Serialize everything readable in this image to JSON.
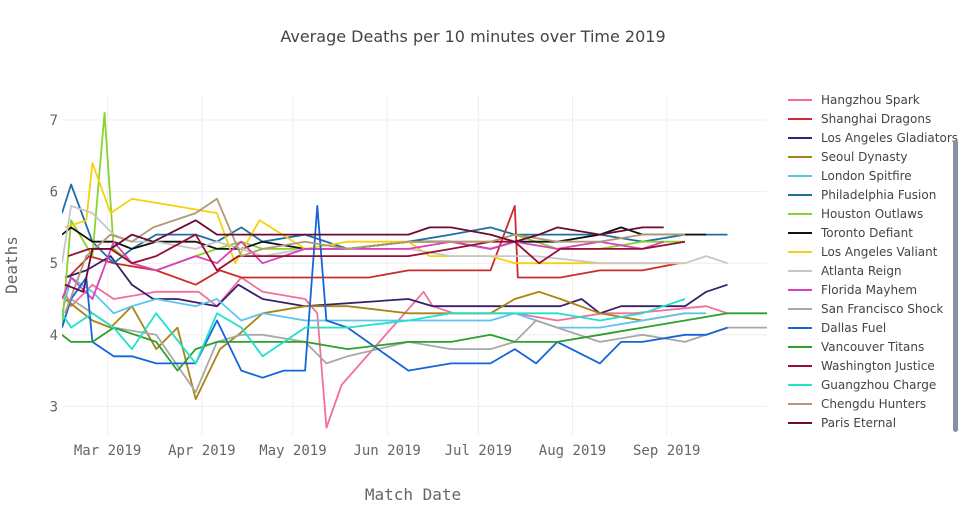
{
  "chart_data": {
    "type": "line",
    "title": "Average Deaths per 10 minutes over Time 2019",
    "xlabel": "Match Date",
    "ylabel": "Deaths",
    "x_start": "2019-02-14",
    "x_end": "2019-10-04",
    "ylim": [
      2.6,
      7.35
    ],
    "yticks": [
      3,
      4,
      5,
      6,
      7
    ],
    "xticks": [
      {
        "label": "Mar 2019",
        "date": "2019-03-01"
      },
      {
        "label": "Apr 2019",
        "date": "2019-04-01"
      },
      {
        "label": "May 2019",
        "date": "2019-05-01"
      },
      {
        "label": "Jun 2019",
        "date": "2019-06-01"
      },
      {
        "label": "Jul 2019",
        "date": "2019-07-01"
      },
      {
        "label": "Aug 2019",
        "date": "2019-08-01"
      },
      {
        "label": "Sep 2019",
        "date": "2019-09-01"
      }
    ],
    "series": [
      {
        "name": "Hangzhou Spark",
        "color": "#f0709a",
        "x": [
          "2019-02-15",
          "2019-02-17",
          "2019-02-24",
          "2019-03-03",
          "2019-03-17",
          "2019-03-31",
          "2019-04-06",
          "2019-04-14",
          "2019-04-21",
          "2019-05-05",
          "2019-05-09",
          "2019-05-12",
          "2019-05-17",
          "2019-06-13",
          "2019-06-16",
          "2019-06-23",
          "2019-07-05",
          "2019-07-13",
          "2019-07-27",
          "2019-08-11",
          "2019-08-21",
          "2019-09-14",
          "2019-09-21"
        ],
        "y": [
          4.6,
          4.4,
          4.7,
          4.5,
          4.6,
          4.6,
          4.4,
          4.8,
          4.6,
          4.5,
          4.3,
          2.7,
          3.3,
          4.6,
          4.4,
          4.3,
          4.3,
          4.3,
          4.2,
          4.3,
          4.3,
          4.4,
          4.3
        ]
      },
      {
        "name": "Shanghai Dragons",
        "color": "#cc2b2b",
        "x": [
          "2019-02-16",
          "2019-02-23",
          "2019-03-03",
          "2019-03-17",
          "2019-03-30",
          "2019-04-07",
          "2019-04-14",
          "2019-04-21",
          "2019-05-05",
          "2019-05-26",
          "2019-06-08",
          "2019-06-22",
          "2019-07-05",
          "2019-07-13",
          "2019-07-14",
          "2019-07-21",
          "2019-07-28",
          "2019-08-10",
          "2019-08-24",
          "2019-09-05"
        ],
        "y": [
          4.8,
          5.1,
          5.0,
          4.9,
          4.7,
          4.9,
          4.8,
          4.8,
          4.8,
          4.8,
          4.9,
          4.9,
          4.9,
          5.8,
          4.8,
          4.8,
          4.8,
          4.9,
          4.9,
          5.0
        ]
      },
      {
        "name": "Los Angeles Gladiators",
        "color": "#3a1f6b",
        "x": [
          "2019-02-15",
          "2019-02-22",
          "2019-03-02",
          "2019-03-09",
          "2019-03-16",
          "2019-03-24",
          "2019-04-06",
          "2019-04-13",
          "2019-04-21",
          "2019-05-05",
          "2019-06-08",
          "2019-06-16",
          "2019-06-23",
          "2019-07-05",
          "2019-07-13",
          "2019-07-21",
          "2019-07-28",
          "2019-08-04",
          "2019-08-10",
          "2019-08-17",
          "2019-08-24",
          "2019-09-07",
          "2019-09-14",
          "2019-09-21"
        ],
        "y": [
          4.8,
          4.9,
          5.1,
          4.7,
          4.5,
          4.5,
          4.4,
          4.7,
          4.5,
          4.4,
          4.5,
          4.4,
          4.4,
          4.4,
          4.4,
          4.4,
          4.4,
          4.5,
          4.3,
          4.4,
          4.4,
          4.4,
          4.6,
          4.7
        ]
      },
      {
        "name": "Seoul Dynasty",
        "color": "#a88410",
        "x": [
          "2019-02-15",
          "2019-02-24",
          "2019-03-02",
          "2019-03-09",
          "2019-03-17",
          "2019-03-24",
          "2019-03-30",
          "2019-04-07",
          "2019-04-13",
          "2019-04-21",
          "2019-05-05",
          "2019-05-19",
          "2019-06-08",
          "2019-06-22",
          "2019-07-05",
          "2019-07-13",
          "2019-07-21",
          "2019-07-28",
          "2019-08-10",
          "2019-08-24",
          "2019-09-07"
        ],
        "y": [
          4.5,
          4.2,
          4.1,
          4.4,
          3.8,
          4.1,
          3.1,
          3.8,
          4.0,
          4.3,
          4.4,
          4.4,
          4.3,
          4.3,
          4.3,
          4.5,
          4.6,
          4.5,
          4.3,
          4.2,
          4.3
        ]
      },
      {
        "name": "London Spitfire",
        "color": "#5ec4ee",
        "x": [
          "2019-02-14",
          "2019-02-17",
          "2019-02-24",
          "2019-03-03",
          "2019-03-09",
          "2019-03-17",
          "2019-03-30",
          "2019-04-06",
          "2019-04-14",
          "2019-04-21",
          "2019-05-05",
          "2019-05-19",
          "2019-06-08",
          "2019-06-22",
          "2019-07-05",
          "2019-07-13",
          "2019-07-20",
          "2019-07-27",
          "2019-08-10",
          "2019-08-24",
          "2019-09-07",
          "2019-09-14"
        ],
        "y": [
          4.3,
          4.8,
          4.6,
          4.3,
          4.4,
          4.5,
          4.4,
          4.5,
          4.2,
          4.3,
          4.2,
          4.2,
          4.2,
          4.2,
          4.2,
          4.3,
          4.2,
          4.1,
          4.1,
          4.2,
          4.3,
          4.3
        ]
      },
      {
        "name": "Philadelphia Fusion",
        "color": "#1f6fa5",
        "x": [
          "2019-02-14",
          "2019-02-17",
          "2019-02-24",
          "2019-03-03",
          "2019-03-09",
          "2019-03-17",
          "2019-03-30",
          "2019-04-06",
          "2019-04-14",
          "2019-04-21",
          "2019-05-05",
          "2019-05-19",
          "2019-06-08",
          "2019-06-22",
          "2019-07-05",
          "2019-07-13",
          "2019-07-27",
          "2019-08-10",
          "2019-08-24",
          "2019-09-07",
          "2019-09-14",
          "2019-09-21"
        ],
        "y": [
          5.7,
          6.1,
          5.3,
          5.0,
          5.2,
          5.4,
          5.4,
          5.3,
          5.5,
          5.3,
          5.4,
          5.2,
          5.3,
          5.4,
          5.5,
          5.4,
          5.4,
          5.4,
          5.3,
          5.4,
          5.4,
          5.4
        ]
      },
      {
        "name": "Houston Outlaws",
        "color": "#8ad42a",
        "x": [
          "2019-02-14",
          "2019-02-17",
          "2019-02-24",
          "2019-02-28",
          "2019-03-03",
          "2019-03-09",
          "2019-03-17",
          "2019-03-30",
          "2019-04-06",
          "2019-04-14",
          "2019-04-21",
          "2019-05-05",
          "2019-05-19",
          "2019-06-08",
          "2019-06-22",
          "2019-07-05",
          "2019-07-13",
          "2019-07-27",
          "2019-08-10",
          "2019-08-24",
          "2019-09-07"
        ],
        "y": [
          4.1,
          5.6,
          5.1,
          7.1,
          5.2,
          5.0,
          4.9,
          5.1,
          5.2,
          5.3,
          5.2,
          5.2,
          5.2,
          5.3,
          5.3,
          5.3,
          5.4,
          5.2,
          5.2,
          5.3,
          5.3
        ]
      },
      {
        "name": "Toronto Defiant",
        "color": "#111111",
        "x": [
          "2019-02-14",
          "2019-02-17",
          "2019-02-24",
          "2019-03-03",
          "2019-03-09",
          "2019-03-17",
          "2019-03-30",
          "2019-04-06",
          "2019-04-14",
          "2019-04-21",
          "2019-05-05",
          "2019-05-19",
          "2019-06-08",
          "2019-06-22",
          "2019-07-05",
          "2019-07-13",
          "2019-07-27",
          "2019-08-10",
          "2019-08-17",
          "2019-08-24",
          "2019-09-07",
          "2019-09-14"
        ],
        "y": [
          5.4,
          5.5,
          5.3,
          5.3,
          5.2,
          5.3,
          5.3,
          5.2,
          5.2,
          5.3,
          5.2,
          5.2,
          5.3,
          5.3,
          5.2,
          5.3,
          5.3,
          5.4,
          5.5,
          5.4,
          5.4,
          5.4
        ]
      },
      {
        "name": "Los Angeles Valiant",
        "color": "#f5d10f",
        "x": [
          "2019-02-15",
          "2019-02-22",
          "2019-02-24",
          "2019-03-02",
          "2019-03-09",
          "2019-03-23",
          "2019-04-06",
          "2019-04-12",
          "2019-04-20",
          "2019-05-05",
          "2019-05-19",
          "2019-06-08",
          "2019-06-15",
          "2019-06-22",
          "2019-07-05",
          "2019-07-13",
          "2019-07-27",
          "2019-08-10",
          "2019-08-24",
          "2019-09-07"
        ],
        "y": [
          5.5,
          5.6,
          6.4,
          5.7,
          5.9,
          5.8,
          5.7,
          5.0,
          5.6,
          5.2,
          5.3,
          5.3,
          5.1,
          5.1,
          5.1,
          5.0,
          5.0,
          5.0,
          5.0,
          5.0
        ]
      },
      {
        "name": "Atlanta Reign",
        "color": "#c7c7c7",
        "x": [
          "2019-02-14",
          "2019-02-17",
          "2019-02-24",
          "2019-03-03",
          "2019-03-09",
          "2019-03-17",
          "2019-03-30",
          "2019-04-06",
          "2019-04-14",
          "2019-04-21",
          "2019-05-05",
          "2019-05-19",
          "2019-06-08",
          "2019-06-22",
          "2019-07-05",
          "2019-07-20",
          "2019-08-10",
          "2019-08-24",
          "2019-09-07",
          "2019-09-14",
          "2019-09-21"
        ],
        "y": [
          5.0,
          5.8,
          5.7,
          5.4,
          5.3,
          5.3,
          5.2,
          5.3,
          5.2,
          5.1,
          5.2,
          5.2,
          5.2,
          5.1,
          5.1,
          5.1,
          5.0,
          5.0,
          5.0,
          5.1,
          5.0
        ]
      },
      {
        "name": "Florida Mayhem",
        "color": "#dc3fbd",
        "x": [
          "2019-02-14",
          "2019-02-17",
          "2019-02-24",
          "2019-03-03",
          "2019-03-09",
          "2019-03-17",
          "2019-03-30",
          "2019-04-06",
          "2019-04-14",
          "2019-04-21",
          "2019-05-05",
          "2019-05-19",
          "2019-06-08",
          "2019-06-22",
          "2019-07-05",
          "2019-07-13",
          "2019-07-27",
          "2019-08-10",
          "2019-08-24",
          "2019-08-31"
        ],
        "y": [
          4.5,
          4.8,
          4.5,
          5.3,
          5.0,
          4.9,
          5.1,
          5.0,
          5.3,
          5.0,
          5.2,
          5.2,
          5.2,
          5.3,
          5.2,
          5.3,
          5.2,
          5.3,
          5.2,
          5.3
        ]
      },
      {
        "name": "San Francisco Shock",
        "color": "#a8a8a8",
        "x": [
          "2019-02-14",
          "2019-02-17",
          "2019-02-24",
          "2019-03-03",
          "2019-03-17",
          "2019-03-30",
          "2019-04-06",
          "2019-04-14",
          "2019-04-21",
          "2019-05-05",
          "2019-05-12",
          "2019-05-19",
          "2019-06-08",
          "2019-06-22",
          "2019-07-05",
          "2019-07-13",
          "2019-07-20",
          "2019-08-10",
          "2019-08-24",
          "2019-09-07",
          "2019-09-21",
          "2019-10-04"
        ],
        "y": [
          4.1,
          4.5,
          4.3,
          4.1,
          4.0,
          3.2,
          3.9,
          4.0,
          4.0,
          3.9,
          3.6,
          3.7,
          3.9,
          3.8,
          3.8,
          3.9,
          4.2,
          3.9,
          4.0,
          3.9,
          4.1,
          4.1
        ]
      },
      {
        "name": "Dallas Fuel",
        "color": "#1565d8",
        "x": [
          "2019-02-14",
          "2019-02-17",
          "2019-02-22",
          "2019-02-24",
          "2019-03-03",
          "2019-03-09",
          "2019-03-17",
          "2019-03-30",
          "2019-04-06",
          "2019-04-14",
          "2019-04-21",
          "2019-04-28",
          "2019-05-05",
          "2019-05-09",
          "2019-05-12",
          "2019-05-19",
          "2019-06-08",
          "2019-06-22",
          "2019-07-05",
          "2019-07-13",
          "2019-07-20",
          "2019-07-27",
          "2019-08-10",
          "2019-08-17",
          "2019-08-24",
          "2019-09-07",
          "2019-09-14",
          "2019-09-21"
        ],
        "y": [
          4.1,
          4.5,
          4.8,
          3.9,
          3.7,
          3.7,
          3.6,
          3.6,
          4.2,
          3.5,
          3.4,
          3.5,
          3.5,
          5.8,
          4.2,
          4.1,
          3.5,
          3.6,
          3.6,
          3.8,
          3.6,
          3.9,
          3.6,
          3.9,
          3.9,
          4.0,
          4.0,
          4.1
        ]
      },
      {
        "name": "Vancouver Titans",
        "color": "#2ba02b",
        "x": [
          "2019-02-14",
          "2019-02-17",
          "2019-02-24",
          "2019-03-03",
          "2019-03-17",
          "2019-03-24",
          "2019-03-30",
          "2019-04-06",
          "2019-04-14",
          "2019-04-21",
          "2019-05-05",
          "2019-05-19",
          "2019-06-08",
          "2019-06-22",
          "2019-07-05",
          "2019-07-13",
          "2019-07-27",
          "2019-08-10",
          "2019-08-24",
          "2019-09-07",
          "2019-09-21",
          "2019-10-04"
        ],
        "y": [
          4.0,
          3.9,
          3.9,
          4.1,
          3.9,
          3.5,
          3.8,
          3.9,
          3.9,
          3.9,
          3.9,
          3.8,
          3.9,
          3.9,
          4.0,
          3.9,
          3.9,
          4.0,
          4.1,
          4.2,
          4.3,
          4.3
        ]
      },
      {
        "name": "Washington Justice",
        "color": "#990f33",
        "x": [
          "2019-02-16",
          "2019-02-23",
          "2019-03-02",
          "2019-03-09",
          "2019-03-17",
          "2019-03-30",
          "2019-04-06",
          "2019-04-13",
          "2019-04-20",
          "2019-05-04",
          "2019-05-18",
          "2019-06-08",
          "2019-06-22",
          "2019-07-05",
          "2019-07-13",
          "2019-07-21",
          "2019-07-28",
          "2019-08-10",
          "2019-08-24",
          "2019-09-07"
        ],
        "y": [
          5.1,
          5.2,
          5.2,
          5.0,
          5.1,
          5.4,
          4.9,
          5.1,
          5.1,
          5.1,
          5.1,
          5.1,
          5.2,
          5.3,
          5.3,
          5.0,
          5.2,
          5.2,
          5.2,
          5.3
        ]
      },
      {
        "name": "Guangzhou Charge",
        "color": "#22e0cc",
        "x": [
          "2019-02-14",
          "2019-02-17",
          "2019-02-24",
          "2019-03-03",
          "2019-03-09",
          "2019-03-17",
          "2019-03-30",
          "2019-04-06",
          "2019-04-14",
          "2019-04-21",
          "2019-05-05",
          "2019-05-19",
          "2019-06-08",
          "2019-06-22",
          "2019-07-05",
          "2019-07-13",
          "2019-07-27",
          "2019-08-10",
          "2019-08-24",
          "2019-09-07"
        ],
        "y": [
          4.3,
          4.1,
          4.3,
          4.1,
          3.8,
          4.3,
          3.6,
          4.3,
          4.1,
          3.7,
          4.1,
          4.1,
          4.2,
          4.3,
          4.3,
          4.3,
          4.3,
          4.2,
          4.3,
          4.5
        ]
      },
      {
        "name": "Chengdu Hunters",
        "color": "#b09976",
        "x": [
          "2019-02-15",
          "2019-02-22",
          "2019-03-02",
          "2019-03-09",
          "2019-03-16",
          "2019-03-30",
          "2019-04-06",
          "2019-04-14",
          "2019-04-21",
          "2019-05-05",
          "2019-05-19",
          "2019-06-08",
          "2019-06-22",
          "2019-07-05",
          "2019-07-13",
          "2019-07-27",
          "2019-08-10",
          "2019-08-24",
          "2019-09-07"
        ],
        "y": [
          4.3,
          5.1,
          5.4,
          5.3,
          5.5,
          5.7,
          5.9,
          5.1,
          5.2,
          5.3,
          5.2,
          5.3,
          5.3,
          5.3,
          5.4,
          5.3,
          5.3,
          5.4,
          5.4
        ]
      },
      {
        "name": "Paris Eternal",
        "color": "#6b0a33",
        "x": [
          "2019-02-15",
          "2019-02-21",
          "2019-02-24",
          "2019-03-02",
          "2019-03-09",
          "2019-03-16",
          "2019-03-30",
          "2019-04-06",
          "2019-04-13",
          "2019-04-21",
          "2019-05-05",
          "2019-05-19",
          "2019-06-08",
          "2019-06-15",
          "2019-06-22",
          "2019-07-05",
          "2019-07-13",
          "2019-07-21",
          "2019-07-27",
          "2019-08-10",
          "2019-08-24",
          "2019-08-31"
        ],
        "y": [
          4.7,
          4.6,
          5.2,
          5.2,
          5.4,
          5.3,
          5.6,
          5.4,
          5.4,
          5.4,
          5.4,
          5.4,
          5.4,
          5.5,
          5.5,
          5.4,
          5.3,
          5.4,
          5.5,
          5.4,
          5.5,
          5.5
        ]
      }
    ]
  }
}
